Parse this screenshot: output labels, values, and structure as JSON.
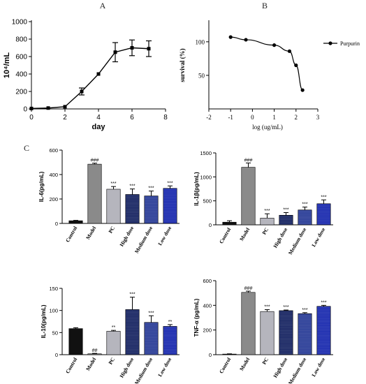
{
  "panels": {
    "A": "A",
    "B": "B",
    "C": "C"
  },
  "chart_data": [
    {
      "id": "growth",
      "type": "line",
      "xlabel": "day",
      "ylabel": "10⁴/mL",
      "xlim": [
        0,
        8
      ],
      "ylim": [
        0,
        1000
      ],
      "xticks": [
        "0",
        "2",
        "4",
        "6",
        "8"
      ],
      "yticks": [
        "0",
        "200",
        "400",
        "600",
        "800",
        "1000"
      ],
      "x": [
        0,
        1,
        2,
        3,
        4,
        5,
        6,
        7
      ],
      "values": [
        5,
        10,
        25,
        200,
        400,
        650,
        700,
        690
      ],
      "errors": [
        0,
        0,
        0,
        40,
        0,
        110,
        90,
        90
      ],
      "color": "#000000"
    },
    {
      "id": "survival",
      "type": "line",
      "xlabel": "log (ug/mL)",
      "ylabel": "survival (%)",
      "xlim": [
        -2,
        3
      ],
      "ylim": [
        0,
        130
      ],
      "xticks": [
        "-2",
        "-1",
        "0",
        "1",
        "2",
        "3"
      ],
      "yticks": [
        "50",
        "100"
      ],
      "series": [
        {
          "name": "Purpurin",
          "x": [
            -1.0,
            -0.3,
            1.0,
            1.7,
            2.0,
            2.3
          ],
          "values": [
            107,
            103,
            95,
            86,
            65,
            28
          ]
        }
      ],
      "legend": "right",
      "color": "#000000"
    },
    {
      "id": "il6",
      "type": "bar",
      "ylabel": "IL-6(pg/mL)",
      "ylim": [
        0,
        600
      ],
      "yticks": [
        "0",
        "200",
        "400",
        "600"
      ],
      "categories": [
        "Control",
        "Model",
        "PC",
        "High dose",
        "Medium dose",
        "Low dose"
      ],
      "values": [
        22,
        485,
        280,
        237,
        225,
        287
      ],
      "errors": [
        3,
        8,
        22,
        45,
        40,
        20
      ],
      "sig": [
        "",
        "###",
        "***",
        "***",
        "***",
        "***"
      ],
      "colors": [
        "#111111",
        "#8a8a8a",
        "#b5b5bd",
        "#1d2a66",
        "#2f4199",
        "#1f2fb0"
      ]
    },
    {
      "id": "il1b",
      "type": "bar",
      "ylabel": "IL-1β(pg/mL)",
      "ylim": [
        0,
        1500
      ],
      "yticks": [
        "0",
        "500",
        "1000",
        "1500"
      ],
      "categories": [
        "Control",
        "Model",
        "PC",
        "High dose",
        "Medium dose",
        "Low dose"
      ],
      "values": [
        55,
        1200,
        140,
        200,
        310,
        440
      ],
      "errors": [
        30,
        90,
        90,
        55,
        60,
        80
      ],
      "sig": [
        "",
        "###",
        "***",
        "***",
        "***",
        "***"
      ],
      "colors": [
        "#111111",
        "#8a8a8a",
        "#b5b5bd",
        "#1d2a66",
        "#2f4199",
        "#1f2fb0"
      ]
    },
    {
      "id": "il10",
      "type": "bar",
      "ylabel": "IL-10(pg/mL)",
      "ylim": [
        0,
        150
      ],
      "yticks": [
        "0",
        "50",
        "100",
        "150"
      ],
      "categories": [
        "Control",
        "Model",
        "PC",
        "High dose",
        "Medium dose",
        "Low dose"
      ],
      "values": [
        59,
        2,
        53,
        102,
        73,
        64
      ],
      "errors": [
        2,
        1,
        2,
        28,
        15,
        4
      ],
      "sig": [
        "",
        "##",
        "**",
        "***",
        "***",
        "**"
      ],
      "colors": [
        "#111111",
        "#8a8a8a",
        "#b5b5bd",
        "#1d2a66",
        "#2f4199",
        "#1f2fb0"
      ]
    },
    {
      "id": "tnfa",
      "type": "bar",
      "ylabel": "TNF-α (pg/mL)",
      "ylim": [
        0,
        600
      ],
      "yticks": [
        "0",
        "200",
        "400",
        "600"
      ],
      "categories": [
        "Control",
        "Model",
        "PC",
        "High dose",
        "Medium dose",
        "Low dose"
      ],
      "values": [
        5,
        505,
        350,
        357,
        333,
        392
      ],
      "errors": [
        2,
        10,
        15,
        5,
        8,
        8
      ],
      "sig": [
        "",
        "###",
        "***",
        "***",
        "***",
        "***"
      ],
      "colors": [
        "#111111",
        "#8a8a8a",
        "#b5b5bd",
        "#1d2a66",
        "#2f4199",
        "#1f2fb0"
      ]
    }
  ]
}
